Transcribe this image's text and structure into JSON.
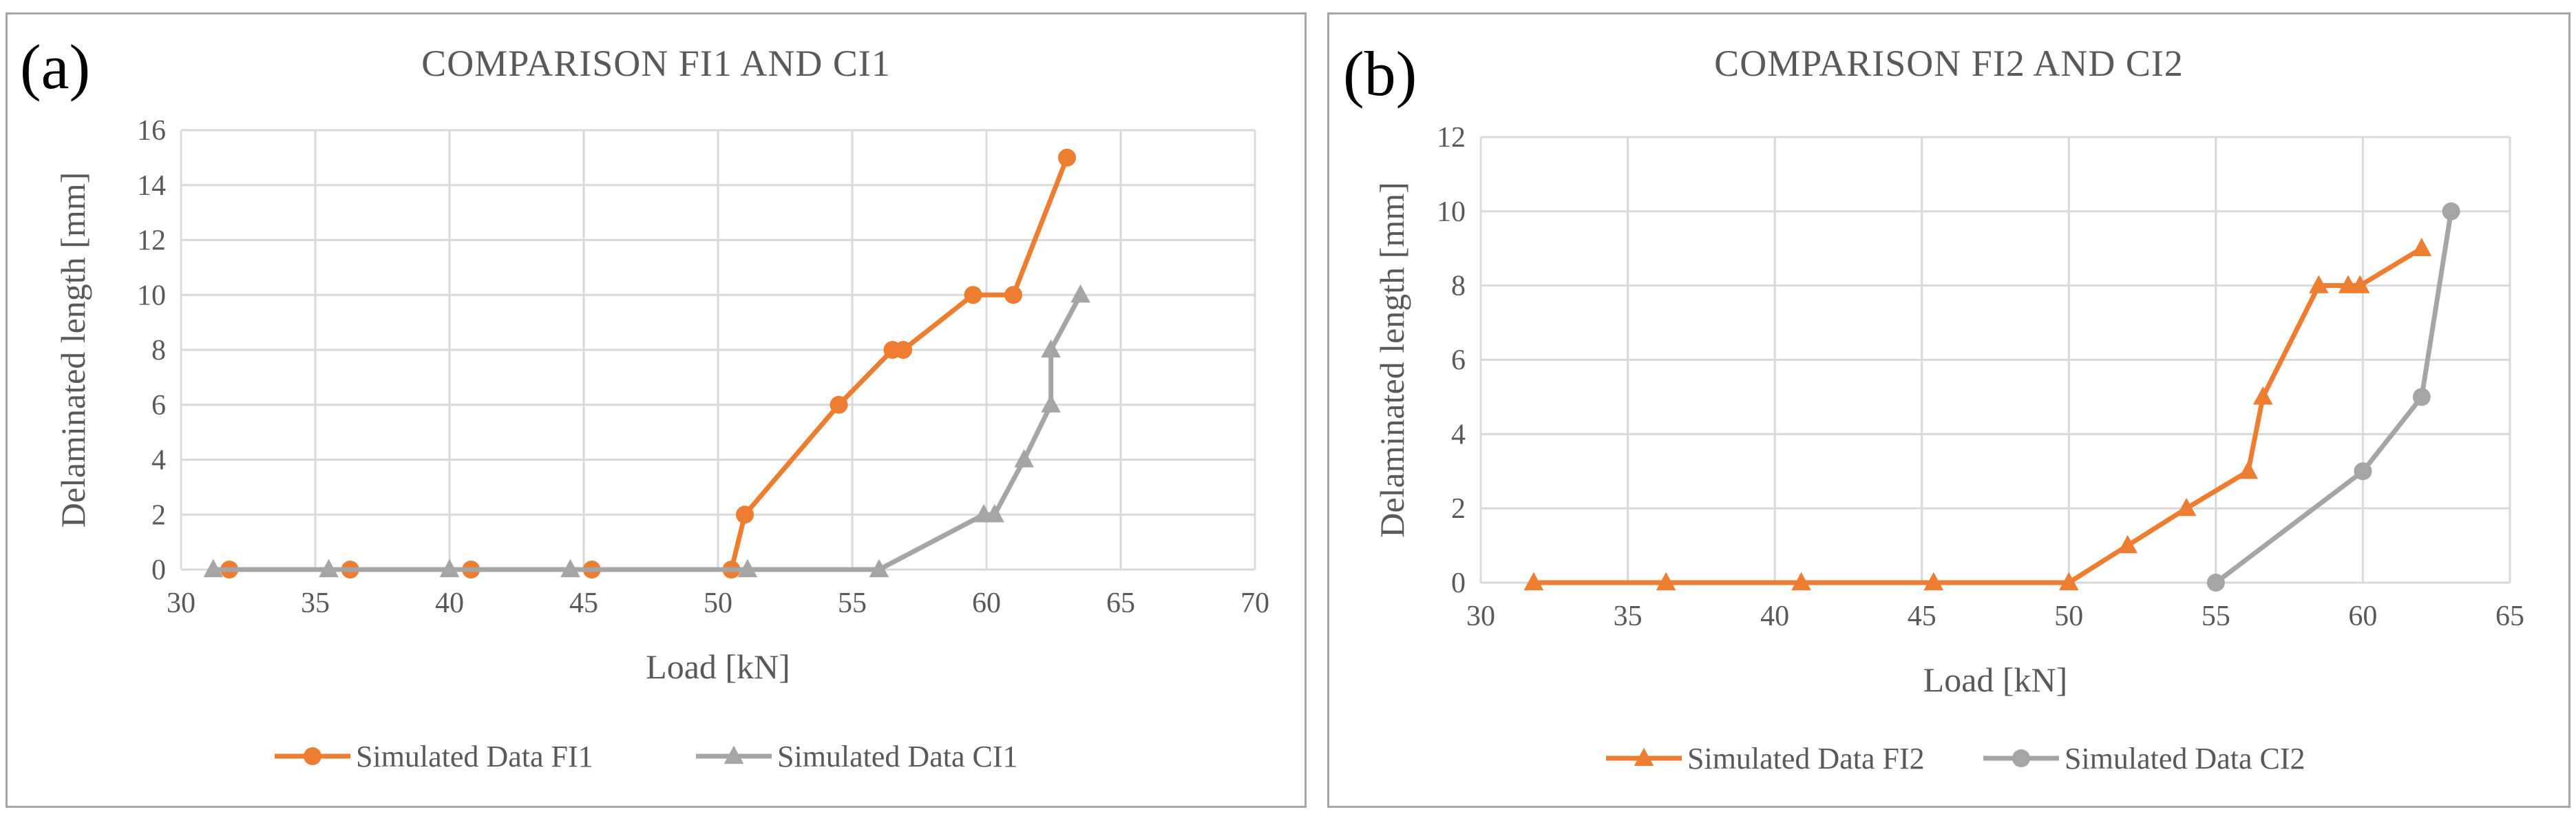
{
  "colors": {
    "orange": "#ed7d31",
    "gray": "#a5a5a5",
    "grid": "#d9d9d9",
    "axis_text": "#595959"
  },
  "panel_a": {
    "letter": "(a)",
    "chart_data": {
      "type": "line",
      "title": "COMPARISON FI1 AND CI1",
      "xlabel": "Load [kN]",
      "ylabel": "Delaminated length [mm]",
      "xlim": [
        30,
        70
      ],
      "ylim": [
        0,
        16
      ],
      "xticks": [
        "30",
        "35",
        "40",
        "45",
        "50",
        "55",
        "60",
        "65",
        "70"
      ],
      "yticks": [
        "0",
        "2",
        "4",
        "6",
        "8",
        "10",
        "12",
        "14",
        "16"
      ],
      "grid": true,
      "legend_position": "bottom",
      "series": [
        {
          "name": "Simulated Data FI1",
          "color": "#ed7d31",
          "marker": "circle",
          "x": [
            31.8,
            36.3,
            40.8,
            45.3,
            50.5,
            51.0,
            54.5,
            56.5,
            56.9,
            59.5,
            61.0,
            63.0
          ],
          "y": [
            0,
            0,
            0,
            0,
            0,
            2,
            6,
            8,
            8,
            10,
            10,
            15
          ]
        },
        {
          "name": "Simulated Data CI1",
          "color": "#a5a5a5",
          "marker": "triangle",
          "x": [
            31.2,
            35.5,
            40.0,
            44.5,
            51.1,
            56.0,
            59.9,
            60.3,
            61.4,
            62.4,
            62.4,
            63.5
          ],
          "y": [
            0,
            0,
            0,
            0,
            0,
            0,
            2,
            2,
            4,
            6,
            8,
            10
          ]
        }
      ]
    }
  },
  "panel_b": {
    "letter": "(b)",
    "chart_data": {
      "type": "line",
      "title": "COMPARISON FI2 AND CI2",
      "xlabel": "Load [kN]",
      "ylabel": "Delaminated length [mm]",
      "xlim": [
        30,
        65
      ],
      "ylim": [
        0,
        12
      ],
      "xticks": [
        "30",
        "35",
        "40",
        "45",
        "50",
        "55",
        "60",
        "65"
      ],
      "yticks": [
        "0",
        "2",
        "4",
        "6",
        "8",
        "10",
        "12"
      ],
      "grid": true,
      "legend_position": "bottom",
      "series": [
        {
          "name": "Simulated Data FI2",
          "color": "#ed7d31",
          "marker": "triangle",
          "x": [
            31.8,
            36.3,
            40.9,
            45.4,
            50.0,
            52.0,
            54.0,
            56.1,
            56.6,
            58.5,
            59.5,
            59.9,
            62.0
          ],
          "y": [
            0,
            0,
            0,
            0,
            0,
            1,
            2,
            3,
            5,
            8,
            8,
            8,
            9
          ]
        },
        {
          "name": "Simulated Data CI2",
          "color": "#a5a5a5",
          "marker": "circle",
          "x": [
            55.0,
            60.0,
            62.0,
            63.0
          ],
          "y": [
            0,
            3,
            5,
            10
          ]
        }
      ]
    }
  }
}
